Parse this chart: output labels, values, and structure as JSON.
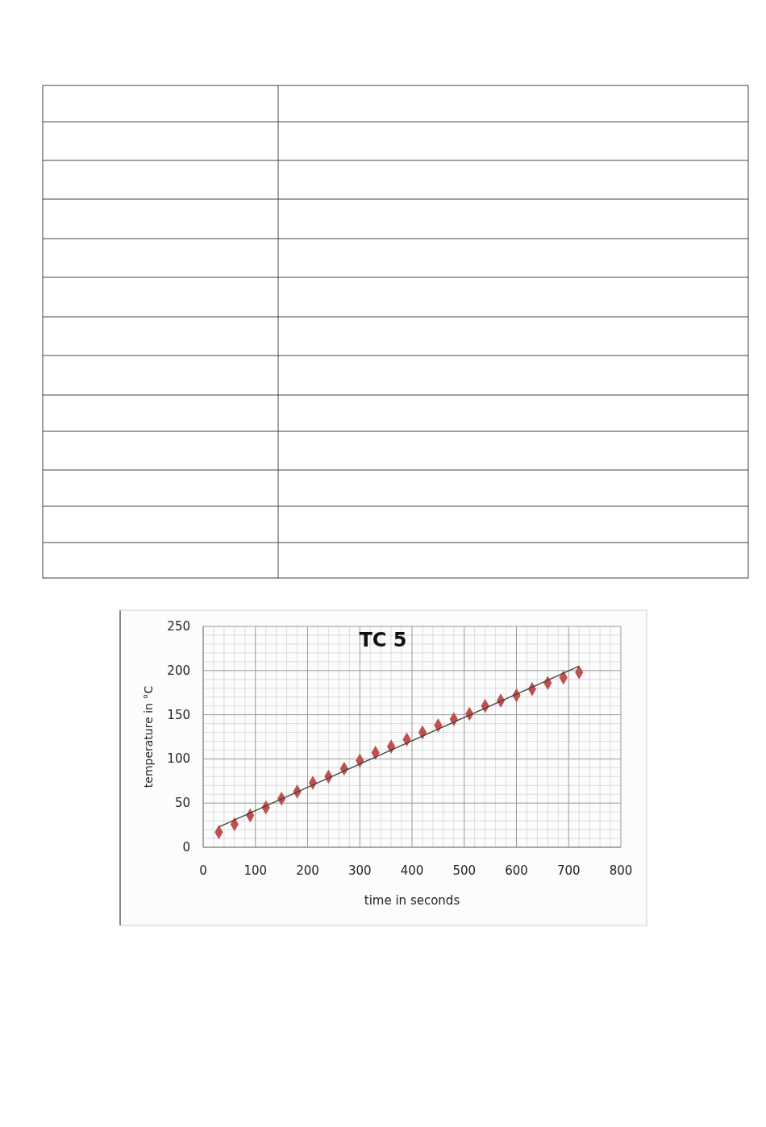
{
  "chart_data": {
    "type": "scatter",
    "title": "TC 5",
    "xlabel": "time in seconds",
    "ylabel": "temperature in °C",
    "x": [
      30,
      60,
      90,
      120,
      150,
      180,
      210,
      240,
      270,
      300,
      330,
      360,
      390,
      420,
      450,
      480,
      510,
      540,
      570,
      600,
      630,
      660,
      690,
      720
    ],
    "series": [
      {
        "color": "#c0504d",
        "marker": "diamond",
        "values": [
          17,
          26,
          36,
          45,
          55,
          63,
          73,
          80,
          89,
          98,
          107,
          114,
          122,
          130,
          138,
          145,
          151,
          160,
          166,
          172,
          179,
          186,
          192,
          198
        ]
      },
      {
        "type": "line",
        "color": "#404040",
        "x": [
          30,
          720
        ],
        "values": [
          23,
          205
        ]
      }
    ],
    "xlim": [
      0,
      800
    ],
    "xticks": [
      0,
      100,
      200,
      300,
      400,
      500,
      600,
      700,
      800
    ],
    "ylim": [
      0,
      250
    ],
    "yticks": [
      0,
      50,
      100,
      150,
      200,
      250
    ],
    "grid": true
  }
}
